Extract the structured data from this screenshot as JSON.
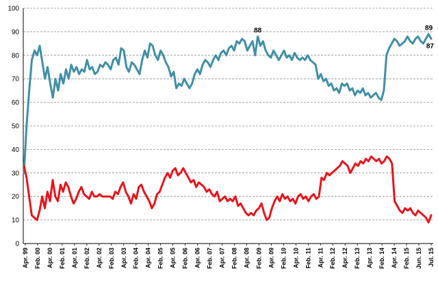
{
  "chart_data": {
    "type": "line",
    "title": "",
    "xlabel": "",
    "ylabel": "",
    "ylim": [
      0,
      100
    ],
    "y_ticks": [
      0,
      10,
      20,
      30,
      40,
      50,
      60,
      70,
      80,
      90,
      100
    ],
    "grid": "horizontal dashed",
    "x_tick_labels": [
      "Apr. 99",
      "Feb. 00",
      "Apr. 00",
      "Feb. 01",
      "Apr. 01",
      "Feb. 02",
      "Apr. 02",
      "Feb. 03",
      "Apr. 03",
      "Feb. 04",
      "Apr. 04",
      "Feb. 05",
      "Apr. 05",
      "Feb. 06",
      "Apr. 06",
      "Feb. 07",
      "Apr. 07",
      "Feb. 08",
      "Apr. 08",
      "Feb. 09",
      "Apr. 09",
      "Feb. 10",
      "Apr. 10",
      "Feb. 11",
      "Apr. 11",
      "Feb. 12",
      "Apr. 12",
      "Feb. 13",
      "Apr. 13",
      "Feb. 14",
      "Apr. 14",
      "Feb. 15",
      "Jun. 15",
      "Jul. 15"
    ],
    "series": [
      {
        "color": "#3F8FA6",
        "values": [
          30,
          50,
          65,
          78,
          82,
          80,
          84,
          77,
          70,
          75,
          68,
          62,
          70,
          65,
          72,
          68,
          74,
          70,
          76,
          73,
          75,
          72,
          74,
          73,
          78,
          74,
          75,
          72,
          73,
          76,
          75,
          77,
          76,
          74,
          78,
          79,
          76,
          83,
          82,
          75,
          73,
          77,
          76,
          74,
          72,
          78,
          82,
          79,
          85,
          84,
          80,
          78,
          82,
          80,
          77,
          75,
          71,
          73,
          66,
          68,
          67,
          70,
          68,
          66,
          68,
          72,
          74,
          72,
          76,
          78,
          77,
          75,
          78,
          80,
          78,
          81,
          82,
          80,
          83,
          84,
          82,
          86,
          85,
          87,
          86,
          82,
          84,
          86,
          80,
          88,
          84,
          86,
          82,
          80,
          79,
          82,
          80,
          78,
          80,
          82,
          79,
          80,
          78,
          81,
          79,
          78,
          79,
          78,
          80,
          78,
          77,
          76,
          70,
          72,
          69,
          70,
          67,
          68,
          65,
          66,
          64,
          68,
          67,
          68,
          65,
          66,
          63,
          65,
          64,
          66,
          63,
          64,
          62,
          63,
          64,
          62,
          61,
          65,
          80,
          83,
          85,
          87,
          86,
          84,
          85,
          86,
          88,
          86,
          85,
          87,
          88,
          86,
          85,
          87,
          89,
          87
        ],
        "data_labels": [
          {
            "text": "88",
            "index": 89
          },
          {
            "text": "89",
            "index": 154
          },
          {
            "text": "87",
            "index": 155
          }
        ]
      },
      {
        "color": "#E8141B",
        "values": [
          33,
          28,
          20,
          12,
          11,
          10,
          14,
          20,
          15,
          22,
          18,
          27,
          20,
          18,
          25,
          22,
          26,
          24,
          20,
          17,
          19,
          22,
          24,
          21,
          20,
          19,
          22,
          20,
          20,
          21,
          20,
          20,
          20,
          20,
          19,
          22,
          21,
          24,
          26,
          22,
          20,
          17,
          21,
          19,
          24,
          25,
          22,
          20,
          18,
          15,
          17,
          21,
          22,
          25,
          28,
          30,
          28,
          31,
          32,
          29,
          30,
          32,
          30,
          28,
          26,
          27,
          24,
          26,
          25,
          24,
          22,
          23,
          21,
          20,
          22,
          18,
          19,
          20,
          18,
          19,
          18,
          20,
          16,
          17,
          15,
          13,
          12,
          13,
          12,
          14,
          15,
          17,
          13,
          10,
          11,
          15,
          18,
          20,
          18,
          21,
          19,
          20,
          18,
          19,
          17,
          20,
          21,
          19,
          20,
          18,
          20,
          21,
          19,
          20,
          28,
          27,
          30,
          29,
          30,
          31,
          32,
          33,
          35,
          34,
          33,
          30,
          32,
          34,
          33,
          35,
          34,
          36,
          35,
          37,
          36,
          35,
          36,
          34,
          35,
          37,
          36,
          34,
          18,
          16,
          14,
          13,
          15,
          14,
          15,
          13,
          12,
          14,
          13,
          12,
          11,
          9,
          12
        ]
      }
    ]
  }
}
